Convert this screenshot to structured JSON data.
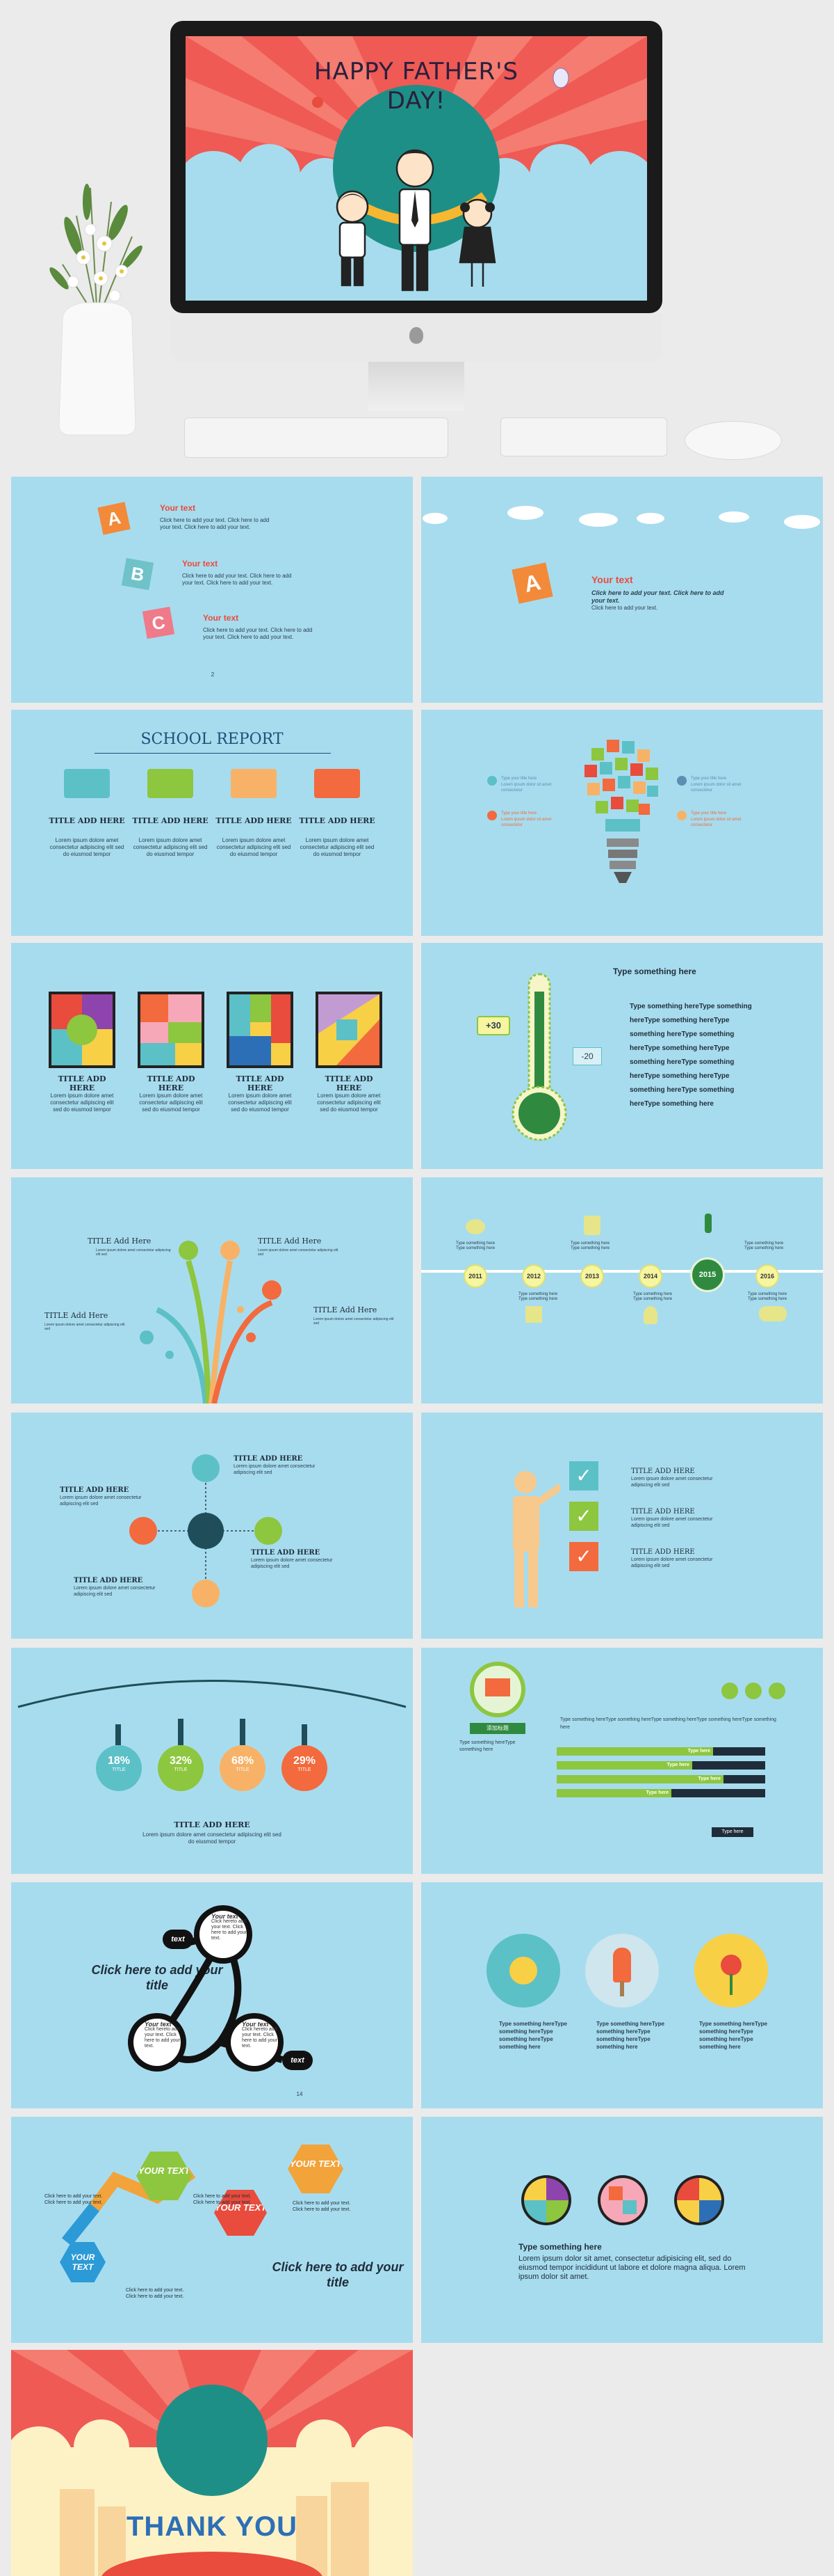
{
  "hero": {
    "title_line1": "HAPPY FATHER'S",
    "title_line2": "DAY!"
  },
  "slide1": {
    "letters": [
      "A",
      "B",
      "C"
    ],
    "items": [
      {
        "title": "Your text",
        "body": "Click here to add your text. Click here to add your text. Click here to add your text."
      },
      {
        "title": "Your text",
        "body": "Click here to add your text. Click here to add your text. Click here to add your text."
      },
      {
        "title": "Your text",
        "body": "Click here to add your text. Click here to add your text. Click here to add your text."
      }
    ],
    "page": "2"
  },
  "slide2": {
    "letter": "A",
    "title": "Your text",
    "body_bold": "Click here to add your text. Click here to add your text.",
    "body": "Click here to add your text."
  },
  "slide3": {
    "title": "SCHOOL REPORT",
    "cards": [
      {
        "title": "TITLE ADD HERE",
        "body": "Lorem ipsum dolore amet consectetur adipiscing elit sed do eiusmod tempor",
        "color": "#5cc0c7"
      },
      {
        "title": "TITLE ADD HERE",
        "body": "Lorem ipsum dolore amet consectetur adipiscing elit sed do eiusmod tempor",
        "color": "#8dc63f"
      },
      {
        "title": "TITLE ADD HERE",
        "body": "Lorem ipsum dolore amet consectetur adipiscing elit sed do eiusmod tempor",
        "color": "#f7b267"
      },
      {
        "title": "TITLE ADD HERE",
        "body": "Lorem ipsum dolore amet consectetur adipiscing elit sed do eiusmod tempor",
        "color": "#f26a3d"
      }
    ]
  },
  "slide4": {
    "left": [
      {
        "title": "Type your title here",
        "body": "Lorem ipsum dolor sit amet consectetur"
      },
      {
        "title": "Type your title here",
        "body": "Lorem ipsum dolor sit amet consectetur"
      }
    ],
    "right": [
      {
        "title": "Type your title here",
        "body": "Lorem ipsum dolor sit amet consectetur"
      },
      {
        "title": "Type your title here",
        "body": "Lorem ipsum dolor sit amet consectetur"
      }
    ]
  },
  "slide5": {
    "cards": [
      {
        "title": "TITLE ADD HERE",
        "body": "Lorem ipsum dolore amet consectetur adipiscing elit sed do eiusmod tempor"
      },
      {
        "title": "TITLE ADD HERE",
        "body": "Lorem ipsum dolore amet consectetur adipiscing elit sed do eiusmod tempor"
      },
      {
        "title": "TITLE ADD HERE",
        "body": "Lorem ipsum dolore amet consectetur adipiscing elit sed do eiusmod tempor"
      },
      {
        "title": "TITLE ADD HERE",
        "body": "Lorem ipsum dolore amet consectetur adipiscing elit sed do eiusmod tempor"
      }
    ]
  },
  "slide6": {
    "header": "Type something here",
    "plus": "+30",
    "minus": "-20",
    "lines": [
      "Type something hereType something",
      "hereType something hereType",
      "something hereType something",
      "hereType something hereType",
      "something hereType something",
      "hereType something hereType",
      "something hereType something",
      "hereType something here"
    ]
  },
  "slide7": {
    "labels": [
      {
        "title": "TITLE Add Here",
        "body": "Lorem ipsum dolore amet consectetur adipiscing elit sed"
      },
      {
        "title": "TITLE Add Here",
        "body": "Lorem ipsum dolore amet consectetur adipiscing elit sed"
      },
      {
        "title": "TITLE Add Here",
        "body": "Lorem ipsum dolore amet consectetur adipiscing elit sed"
      },
      {
        "title": "TITLE Add Here",
        "body": "Lorem ipsum dolore amet consectetur adipiscing elit sed"
      }
    ]
  },
  "slide8": {
    "years": [
      "2011",
      "2012",
      "2013",
      "2014",
      "2015",
      "2016"
    ],
    "caption": "Type something here Type something here"
  },
  "slide9": {
    "items": [
      {
        "title": "TITLE ADD HERE",
        "body": "Lorem ipsum dolore amet consectetur adipiscing elit sed"
      },
      {
        "title": "TITLE ADD HERE",
        "body": "Lorem ipsum dolore amet consectetur adipiscing elit sed"
      },
      {
        "title": "TITLE ADD HERE",
        "body": "Lorem ipsum dolore amet consectetur adipiscing elit sed"
      },
      {
        "title": "TITLE ADD HERE",
        "body": "Lorem ipsum dolore amet consectetur adipiscing elit sed"
      }
    ]
  },
  "slide10": {
    "items": [
      {
        "title": "TITLE ADD HERE",
        "body": "Lorem ipsum dolore amet consectetur adipiscing elit sed"
      },
      {
        "title": "TITLE ADD HERE",
        "body": "Lorem ipsum dolore amet consectetur adipiscing elit sed"
      },
      {
        "title": "TITLE ADD HERE",
        "body": "Lorem ipsum dolore amet consectetur adipiscing elit sed"
      }
    ]
  },
  "slide11": {
    "tags": [
      {
        "pct": 18,
        "label": "TITLE",
        "color": "#5cc0c7"
      },
      {
        "pct": 32,
        "label": "TITLE",
        "color": "#8dc63f"
      },
      {
        "pct": 68,
        "label": "TITLE",
        "color": "#f7b267"
      },
      {
        "pct": 29,
        "label": "TITLE",
        "color": "#f26a3d"
      }
    ],
    "title": "TITLE ADD HERE",
    "body": "Lorem ipsum dolore amet consectetur adipiscing elit sed do eiusmod tempor"
  },
  "slide12": {
    "badge": "添加标题",
    "left_text": "Type something hereType something here",
    "paragraph": "Type something hereType something hereType something hereType something hereType something here",
    "bars": [
      {
        "label": "Type here",
        "value": 0.75
      },
      {
        "label": "Type here",
        "value": 0.65
      },
      {
        "label": "Type here",
        "value": 0.8
      },
      {
        "label": "Type here",
        "value": 0.55
      }
    ]
  },
  "slide13": {
    "headline": "Click here to add your title",
    "pills": [
      "text",
      "text"
    ],
    "nodes": [
      {
        "title": "Your text",
        "body": "Click hereto add your text. Click here to add your text."
      },
      {
        "title": "Your text",
        "body": "Click hereto add your text. Click here to add your text."
      },
      {
        "title": "Your text",
        "body": "Click hereto add your text. Click here to add your text."
      }
    ],
    "page": "14"
  },
  "slide14": {
    "items": [
      {
        "body": "Type something hereType something hereType something hereType something here"
      },
      {
        "body": "Type something hereType something hereType something hereType something here"
      },
      {
        "body": "Type something hereType something hereType something hereType something here"
      }
    ]
  },
  "slide15": {
    "hexes": [
      "YOUR TEXT",
      "YOUR TEXT",
      "YOUR TEXT",
      "YOUR TEXT"
    ],
    "notes": [
      "Click here to add your text. Click here to add your text.",
      "Click here to add your text. Click here to add your text.",
      "Click here to add your text. Click here to add your text.",
      "Click here to add your text. Click here to add your text."
    ],
    "headline": "Click here to add your title"
  },
  "slide16": {
    "title": "Type something here",
    "body": "Lorem ipsum dolor sit amet, consectetur adipisicing elit, sed do eiusmod tempor incididunt ut labore et dolore magna aliqua. Lorem ipsum dolor sit amet."
  },
  "slide17": {
    "title": "THANK YOU"
  }
}
